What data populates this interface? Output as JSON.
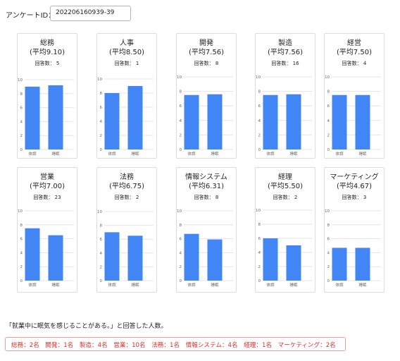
{
  "survey": {
    "label": "アンケートID：",
    "id_value": "202206160939-39"
  },
  "count_label": "回答数：",
  "charts": [
    {
      "title": "総務",
      "avg": "(平均9.10)",
      "count": "5"
    },
    {
      "title": "人事",
      "avg": "(平均8.50)",
      "count": "1"
    },
    {
      "title": "開発",
      "avg": "(平均7.56)",
      "count": "8"
    },
    {
      "title": "製造",
      "avg": "(平均7.56)",
      "count": "16"
    },
    {
      "title": "経営",
      "avg": "(平均7.50)",
      "count": "4"
    },
    {
      "title": "営業",
      "avg": "(平均7.00)",
      "count": "23"
    },
    {
      "title": "法務",
      "avg": "(平均6.75)",
      "count": "2"
    },
    {
      "title": "情報システム",
      "avg": "(平均6.31)",
      "count": "8"
    },
    {
      "title": "経理",
      "avg": "(平均5.50)",
      "count": "2"
    },
    {
      "title": "マーケティング",
      "avg": "(平均4.67)",
      "count": "3"
    }
  ],
  "chart_data": [
    {
      "type": "bar",
      "title": "総務",
      "categories": [
        "体調",
        "睡眠"
      ],
      "values": [
        9.0,
        9.2
      ],
      "ylim": [
        0,
        10
      ],
      "yticks": [
        0,
        2,
        4,
        6,
        8,
        10
      ]
    },
    {
      "type": "bar",
      "title": "人事",
      "categories": [
        "体調",
        "睡眠"
      ],
      "values": [
        8.0,
        9.0
      ],
      "ylim": [
        0,
        10
      ],
      "yticks": [
        0,
        2,
        4,
        6,
        8,
        10
      ]
    },
    {
      "type": "bar",
      "title": "開発",
      "categories": [
        "体調",
        "睡眠"
      ],
      "values": [
        7.5,
        7.6
      ],
      "ylim": [
        0,
        10
      ],
      "yticks": [
        0,
        2,
        4,
        6,
        8,
        10
      ]
    },
    {
      "type": "bar",
      "title": "製造",
      "categories": [
        "体調",
        "睡眠"
      ],
      "values": [
        7.5,
        7.6
      ],
      "ylim": [
        0,
        10
      ],
      "yticks": [
        0,
        2,
        4,
        6,
        8,
        10
      ]
    },
    {
      "type": "bar",
      "title": "経営",
      "categories": [
        "体調",
        "睡眠"
      ],
      "values": [
        7.5,
        7.5
      ],
      "ylim": [
        0,
        10
      ],
      "yticks": [
        0,
        2,
        4,
        6,
        8,
        10
      ]
    },
    {
      "type": "bar",
      "title": "営業",
      "categories": [
        "体調",
        "睡眠"
      ],
      "values": [
        7.5,
        6.5
      ],
      "ylim": [
        0,
        10
      ],
      "yticks": [
        0,
        2,
        4,
        6,
        8,
        10
      ]
    },
    {
      "type": "bar",
      "title": "法務",
      "categories": [
        "体調",
        "睡眠"
      ],
      "values": [
        7.0,
        6.5
      ],
      "ylim": [
        0,
        10
      ],
      "yticks": [
        0,
        2,
        4,
        6,
        8,
        10
      ]
    },
    {
      "type": "bar",
      "title": "情報システム",
      "categories": [
        "体調",
        "睡眠"
      ],
      "values": [
        6.7,
        5.9
      ],
      "ylim": [
        0,
        10
      ],
      "yticks": [
        0,
        2,
        4,
        6,
        8,
        10
      ]
    },
    {
      "type": "bar",
      "title": "経理",
      "categories": [
        "体調",
        "睡眠"
      ],
      "values": [
        6.0,
        5.0
      ],
      "ylim": [
        0,
        10
      ],
      "yticks": [
        0,
        2,
        4,
        6,
        8,
        10
      ]
    },
    {
      "type": "bar",
      "title": "マーケティング",
      "categories": [
        "体調",
        "睡眠"
      ],
      "values": [
        4.7,
        4.7
      ],
      "ylim": [
        0,
        10
      ],
      "yticks": [
        0,
        2,
        4,
        6,
        8,
        10
      ]
    }
  ],
  "colors": {
    "bar": "#4285f4",
    "grid": "#e4e4e4",
    "axis_text": "#666666",
    "result_text": "#d9302c"
  },
  "note": "「就業中に眠気を感じることがある。」と回答した人数。",
  "result": "総務：2名　開発：1名　製造：4名　営業：10名　法務：1名　情報システム：4名　経理：1名　マーケティング：2名"
}
